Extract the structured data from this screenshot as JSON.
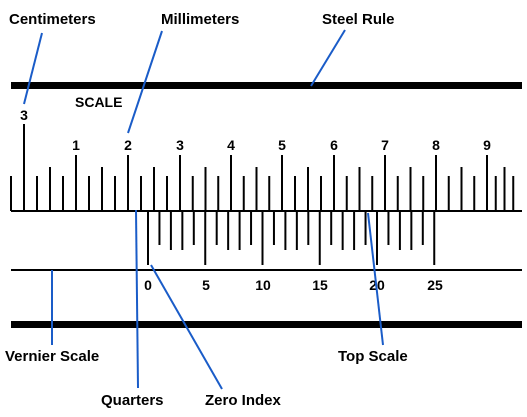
{
  "labels": {
    "centimeters": "Centimeters",
    "millimeters": "Millimeters",
    "steel_rule": "Steel Rule",
    "scale": "SCALE",
    "vernier_scale": "Vernier Scale",
    "top_scale": "Top Scale",
    "quarters": "Quarters",
    "zero_index": "Zero Index"
  },
  "main_scale_numbers": [
    "3",
    "1",
    "2",
    "3",
    "4",
    "5",
    "6",
    "7",
    "8",
    "9"
  ],
  "vernier_numbers": [
    "0",
    "5",
    "10",
    "15",
    "20",
    "25"
  ],
  "colors": {
    "leader": "#1a5cc8",
    "ink": "#000000"
  }
}
